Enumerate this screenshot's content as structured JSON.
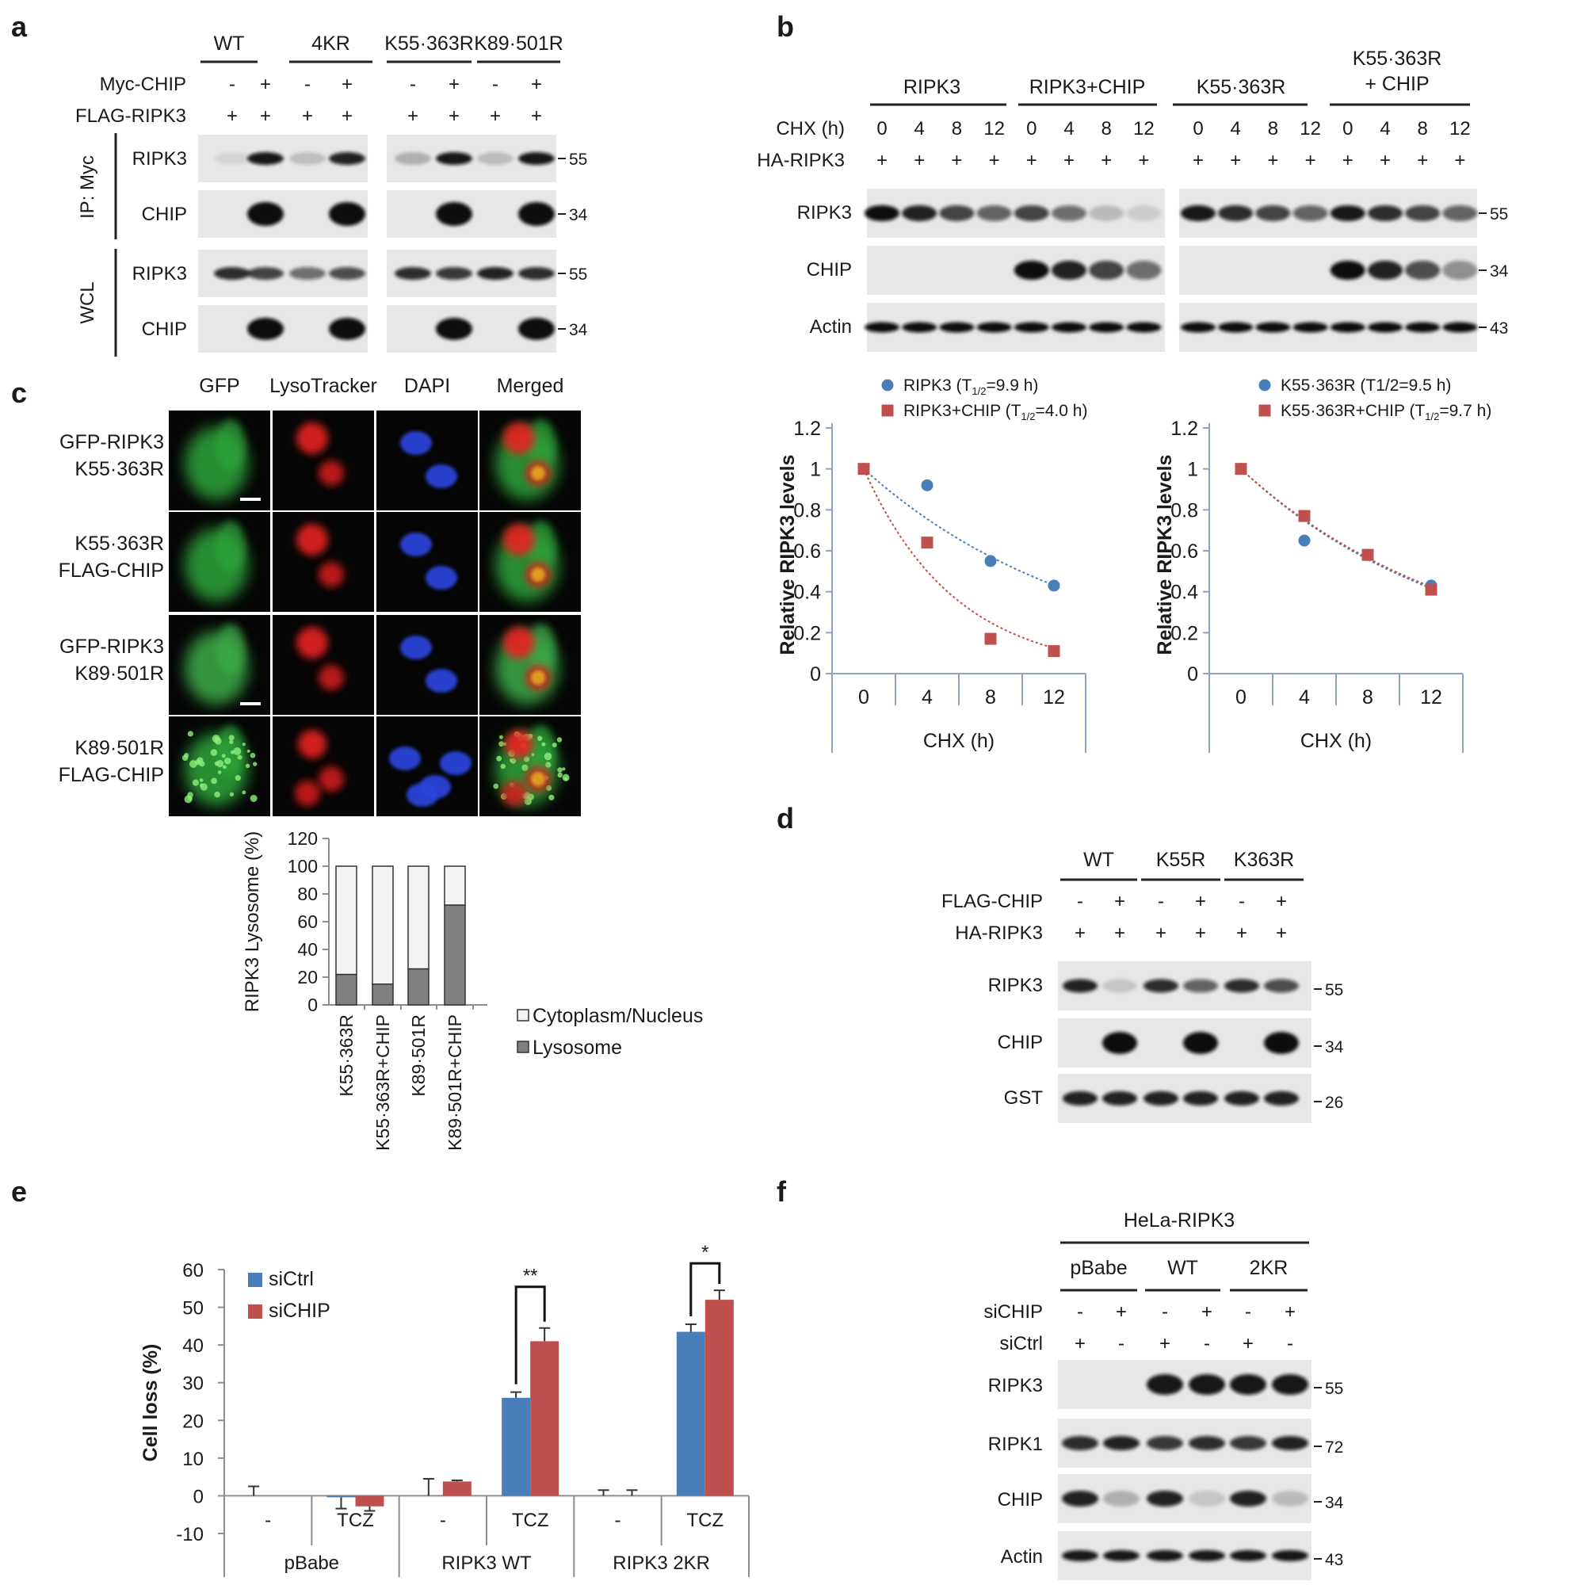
{
  "panels": {
    "a": {
      "letter": "a",
      "groups": [
        "WT",
        "4KR",
        "K55·363R",
        "K89·501R"
      ],
      "rows": [
        {
          "label": "Myc-CHIP",
          "signs": [
            "-",
            "+",
            "-",
            "+",
            "-",
            "+",
            "-",
            "+"
          ]
        },
        {
          "label": "FLAG-RIPK3",
          "signs": [
            "+",
            "+",
            "+",
            "+",
            "+",
            "+",
            "+",
            "+"
          ]
        }
      ],
      "side_labels": [
        "IP: Myc",
        "WCL"
      ],
      "blots": [
        {
          "label": "RIPK3",
          "mw": "55"
        },
        {
          "label": "CHIP",
          "mw": "34"
        },
        {
          "label": "RIPK3",
          "mw": "55"
        },
        {
          "label": "CHIP",
          "mw": "34"
        }
      ]
    },
    "b": {
      "letter": "b",
      "groups": [
        "RIPK3",
        "RIPK3+CHIP",
        "K55·363R",
        "K55·363R",
        "+ CHIP"
      ],
      "rows": [
        {
          "label": "CHX (h)",
          "values": [
            "0",
            "4",
            "8",
            "12",
            "0",
            "4",
            "8",
            "12",
            "0",
            "4",
            "8",
            "12",
            "0",
            "4",
            "8",
            "12"
          ]
        },
        {
          "label": "HA-RIPK3",
          "values": [
            "+",
            "+",
            "+",
            "+",
            "+",
            "+",
            "+",
            "+",
            "+",
            "+",
            "+",
            "+",
            "+",
            "+",
            "+",
            "+"
          ]
        }
      ],
      "blots": [
        {
          "label": "RIPK3",
          "mw": "55"
        },
        {
          "label": "CHIP",
          "mw": "34"
        },
        {
          "label": "Actin",
          "mw": "43"
        }
      ]
    },
    "c": {
      "letter": "c",
      "columns": [
        "GFP",
        "LysoTracker",
        "DAPI",
        "Merged"
      ],
      "rows": [
        [
          "GFP-RIPK3",
          "K55·363R"
        ],
        [
          "K55·363R",
          "FLAG-CHIP"
        ],
        [
          "GFP-RIPK3",
          "K89·501R"
        ],
        [
          "K89·501R",
          "FLAG-CHIP"
        ]
      ]
    },
    "d": {
      "letter": "d",
      "groups": [
        "WT",
        "K55R",
        "K363R"
      ],
      "rows": [
        {
          "label": "FLAG-CHIP",
          "signs": [
            "-",
            "+",
            "-",
            "+",
            "-",
            "+"
          ]
        },
        {
          "label": "HA-RIPK3",
          "signs": [
            "+",
            "+",
            "+",
            "+",
            "+",
            "+"
          ]
        }
      ],
      "blots": [
        {
          "label": "RIPK3",
          "mw": "55"
        },
        {
          "label": "CHIP",
          "mw": "34"
        },
        {
          "label": "GST",
          "mw": "26"
        }
      ]
    },
    "e": {
      "letter": "e"
    },
    "f": {
      "letter": "f",
      "header": "HeLa-RIPK3",
      "groups": [
        "pBabe",
        "WT",
        "2KR"
      ],
      "rows": [
        {
          "label": "siCHIP",
          "signs": [
            "-",
            "+",
            "-",
            "+",
            "-",
            "+"
          ]
        },
        {
          "label": "siCtrl",
          "signs": [
            "+",
            "-",
            "+",
            "-",
            "+",
            "-"
          ]
        }
      ],
      "blots": [
        {
          "label": "RIPK3",
          "mw": "55"
        },
        {
          "label": "RIPK1",
          "mw": "72"
        },
        {
          "label": "CHIP",
          "mw": "34"
        },
        {
          "label": "Actin",
          "mw": "43"
        }
      ]
    }
  },
  "chart_data": [
    {
      "id": "b-left",
      "type": "scatter",
      "ylabel": "Relative RIPK3 levels",
      "xlabel": "CHX (h)",
      "categories": [
        "0",
        "4",
        "8",
        "12"
      ],
      "y_ticks": [
        "0",
        "0.2",
        "0.4",
        "0.6",
        "0.8",
        "1",
        "1.2"
      ],
      "ylim": [
        0,
        1.2
      ],
      "legend_position": "top",
      "series": [
        {
          "name": "RIPK3 (T",
          "name_sub": "1/2",
          "name_tail": "=9.9 h)",
          "color": "#4a7ebb",
          "marker": "circle",
          "values": [
            1.0,
            0.92,
            0.55,
            0.43
          ],
          "half_life": 9.9
        },
        {
          "name": "RIPK3+CHIP (T",
          "name_sub": "1/2",
          "name_tail": "=4.0 h)",
          "color": "#c0504d",
          "marker": "square",
          "values": [
            1.0,
            0.64,
            0.17,
            0.11
          ],
          "half_life": 4.0
        }
      ]
    },
    {
      "id": "b-right",
      "type": "scatter",
      "ylabel": "Relative RIPK3 levels",
      "xlabel": "CHX (h)",
      "categories": [
        "0",
        "4",
        "8",
        "12"
      ],
      "y_ticks": [
        "0",
        "0.2",
        "0.4",
        "0.6",
        "0.8",
        "1",
        "1.2"
      ],
      "ylim": [
        0,
        1.2
      ],
      "legend_position": "top",
      "series": [
        {
          "name": "K55·363R (T1/2=9.5 h)",
          "name_sub": "",
          "name_tail": "",
          "color": "#4a7ebb",
          "marker": "circle",
          "values": [
            1.0,
            0.65,
            0.58,
            0.43
          ],
          "half_life": 9.5
        },
        {
          "name": "K55·363R+CHIP (T",
          "name_sub": "1/2",
          "name_tail": "=9.7 h)",
          "color": "#c0504d",
          "marker": "square",
          "values": [
            1.0,
            0.77,
            0.58,
            0.41
          ],
          "half_life": 9.7
        }
      ]
    },
    {
      "id": "c-bar",
      "type": "bar",
      "stacked": true,
      "ylabel": "RIPK3 Lysosome (%)",
      "categories": [
        "K55·363R",
        "K55·363R+CHIP",
        "K89·501R",
        "K89·501R+CHIP"
      ],
      "y_ticks": [
        "0",
        "20",
        "40",
        "60",
        "80",
        "100",
        "120"
      ],
      "ylim": [
        0,
        120
      ],
      "legend_position": "right",
      "series": [
        {
          "name": "Lysosome",
          "color": "#808080",
          "values": [
            22,
            15,
            26,
            72
          ]
        },
        {
          "name": "Cytoplasm/Nucleus",
          "color": "#f4f4f4",
          "values": [
            78,
            85,
            74,
            28
          ]
        }
      ]
    },
    {
      "id": "e-bar",
      "type": "bar",
      "ylabel": "Cell loss (%)",
      "categories": [
        "-",
        "TCZ",
        "-",
        "TCZ",
        "-",
        "TCZ"
      ],
      "groups": [
        "pBabe",
        "RIPK3 WT",
        "RIPK3 2KR"
      ],
      "y_ticks": [
        "-10",
        "0",
        "10",
        "20",
        "30",
        "40",
        "50",
        "60"
      ],
      "ylim": [
        -10,
        60
      ],
      "legend_position": "top-left",
      "series": [
        {
          "name": "siCtrl",
          "color": "#4a7ebb",
          "values": [
            0,
            -0.4,
            0,
            26,
            0,
            43.5
          ],
          "errors": [
            2.5,
            3,
            4.5,
            1.5,
            1.5,
            2
          ]
        },
        {
          "name": "siCHIP",
          "color": "#c0504d",
          "values": [
            0,
            -2.8,
            3.8,
            41,
            0,
            52
          ],
          "errors": [
            0,
            1.2,
            0.3,
            3.5,
            1.5,
            2.5
          ]
        }
      ],
      "significance": [
        {
          "label": "**",
          "index": 3
        },
        {
          "label": "*",
          "index": 5
        }
      ]
    }
  ]
}
